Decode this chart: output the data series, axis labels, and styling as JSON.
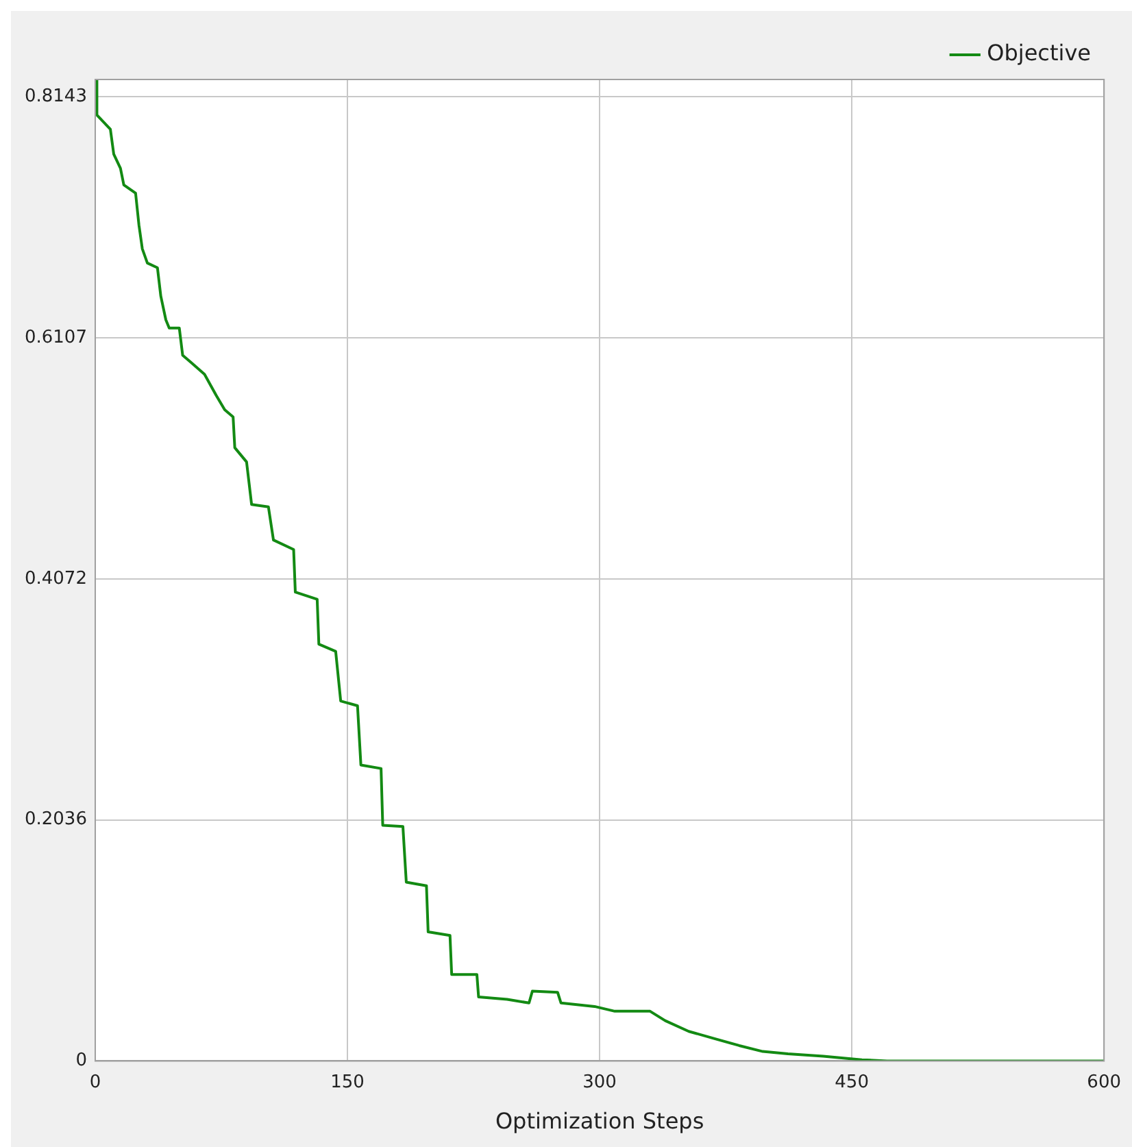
{
  "chart_data": {
    "type": "line",
    "xlabel": "Optimization Steps",
    "legend": "top right",
    "grid": true,
    "marker": "none",
    "line_style": "solid",
    "xlim": [
      0,
      600
    ],
    "xticks": [
      0,
      150,
      300,
      450,
      600
    ],
    "ylim": [
      0,
      0.829
    ],
    "yticks": [
      0,
      0.2036,
      0.4072,
      0.6107,
      0.8143
    ],
    "series": [
      {
        "name": "Objective",
        "color": "#138a13",
        "x": [
          0,
          1,
          1,
          9,
          11,
          15,
          17,
          24,
          26,
          28,
          31,
          37,
          39,
          42,
          44,
          50,
          52,
          57,
          65,
          72,
          77,
          82,
          83,
          90,
          93,
          103,
          106,
          118,
          119,
          132,
          133,
          143,
          146,
          156,
          158,
          170,
          171,
          183,
          185,
          197,
          198,
          211,
          212,
          227,
          228,
          245,
          258,
          260,
          275,
          277,
          297,
          309,
          330,
          339,
          353,
          368,
          383,
          397,
          412,
          433,
          456,
          471,
          600
        ],
        "values": [
          0.814,
          0.829,
          0.799,
          0.787,
          0.766,
          0.754,
          0.74,
          0.733,
          0.706,
          0.686,
          0.674,
          0.67,
          0.646,
          0.626,
          0.619,
          0.619,
          0.596,
          0.59,
          0.58,
          0.562,
          0.55,
          0.544,
          0.518,
          0.506,
          0.47,
          0.468,
          0.44,
          0.432,
          0.396,
          0.39,
          0.352,
          0.346,
          0.304,
          0.3,
          0.25,
          0.247,
          0.199,
          0.198,
          0.151,
          0.148,
          0.109,
          0.106,
          0.073,
          0.073,
          0.054,
          0.052,
          0.049,
          0.059,
          0.058,
          0.049,
          0.046,
          0.042,
          0.042,
          0.034,
          0.025,
          0.019,
          0.013,
          0.008,
          0.006,
          0.004,
          0.001,
          0,
          0
        ]
      }
    ]
  }
}
